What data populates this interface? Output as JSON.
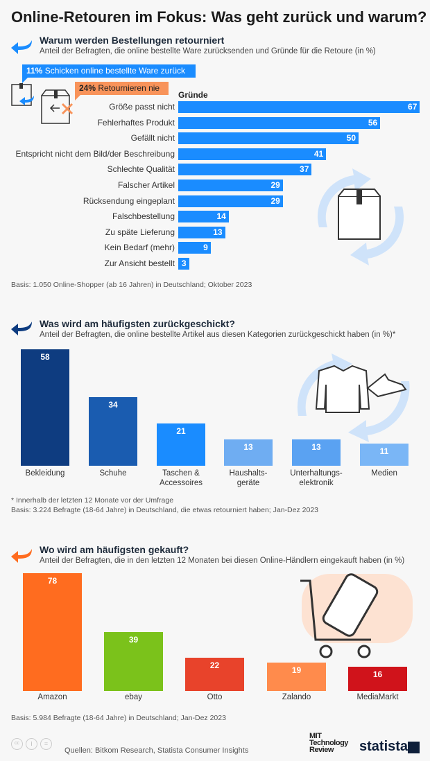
{
  "title": "Online-Retouren im Fokus: Was geht zurück und warum?",
  "colors": {
    "blue": "#1a8cff",
    "orange": "#f8935a"
  },
  "section1": {
    "title": "Warum werden Bestellungen retourniert",
    "subtitle": "Anteil der Befragten, die online bestellte Ware zurücksenden und Gründe für die Retoure (in %)",
    "callout_return": {
      "value": "11%",
      "text": "Schicken online bestellte Ware zurück"
    },
    "callout_never": {
      "value": "24%",
      "text": "Retournieren nie"
    },
    "note": "Basis: 1.050 Online-Shopper (ab 16 Jahren) in Deutschland; Oktober 2023"
  },
  "section2": {
    "title": "Was wird am häufigsten zurückgeschickt?",
    "subtitle": "Anteil der Befragten, die online bestellte Artikel aus diesen Kategorien zurückgeschickt haben (in %)*",
    "footnote": "* Innerhalb der letzten 12 Monate vor der Umfrage",
    "note": "Basis: 3.224 Befragte (18-64 Jahre) in Deutschland, die etwas retourniert haben; Jan-Dez 2023"
  },
  "section3": {
    "title": "Wo wird am häufigsten gekauft?",
    "subtitle": "Anteil der Befragten, die in den letzten 12 Monaten bei diesen Online-Händlern eingekauft haben (in %)",
    "note": "Basis: 5.984 Befragte (18-64 Jahre) in Deutschland; Jan-Dez 2023"
  },
  "footer": {
    "sources": "Quellen: Bitkom Research, Statista Consumer Insights",
    "logo_mit": "MIT Technology Review",
    "logo_statista": "statista"
  },
  "chart_data": [
    {
      "type": "bar",
      "orientation": "horizontal",
      "title": "Gründe",
      "categories": [
        "Größe passt nicht",
        "Fehlerhaftes Produkt",
        "Gefällt nicht",
        "Entspricht nicht dem Bild/der Beschreibung",
        "Schlechte Qualität",
        "Falscher Artikel",
        "Rücksendung eingeplant",
        "Falschbestellung",
        "Zu späte Lieferung",
        "Kein Bedarf (mehr)",
        "Zur Ansicht bestellt"
      ],
      "values": [
        67,
        56,
        50,
        41,
        37,
        29,
        29,
        14,
        13,
        9,
        3
      ],
      "unit": "%",
      "color": "#1a8cff"
    },
    {
      "type": "bar",
      "categories": [
        "Bekleidung",
        "Schuhe",
        "Taschen & Accessoires",
        "Haushalts-geräte",
        "Unterhaltungs-elektronik",
        "Medien"
      ],
      "values": [
        58,
        34,
        21,
        13,
        13,
        11
      ],
      "unit": "%",
      "colors": [
        "#0e3c80",
        "#1a5cb0",
        "#1a8cff",
        "#6fadf2",
        "#5aa2f2",
        "#7ab6f6"
      ]
    },
    {
      "type": "bar",
      "categories": [
        "Amazon",
        "ebay",
        "Otto",
        "Zalando",
        "MediaMarkt"
      ],
      "values": [
        78,
        39,
        22,
        19,
        16
      ],
      "unit": "%",
      "colors": [
        "#ff6c1f",
        "#7bc21b",
        "#e8432b",
        "#ff8b4c",
        "#d0131b"
      ]
    }
  ]
}
